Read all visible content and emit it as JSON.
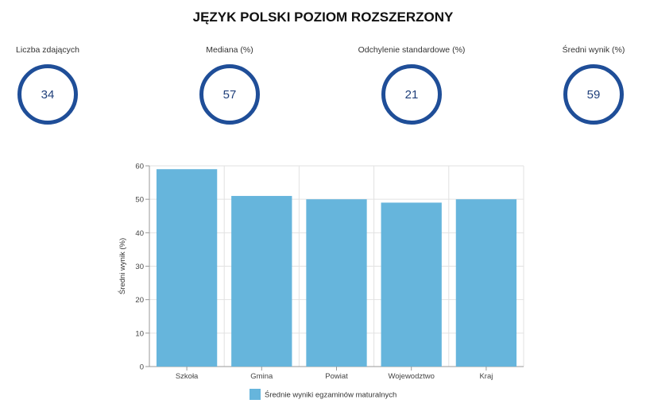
{
  "title": "JĘZYK POLSKI POZIOM ROZSZERZONY",
  "stats": [
    {
      "label": "Liczba zdających",
      "value": "34"
    },
    {
      "label": "Mediana (%)",
      "value": "57"
    },
    {
      "label": "Odchylenie standardowe (%)",
      "value": "21"
    },
    {
      "label": "Średni wynik (%)",
      "value": "59"
    }
  ],
  "colors": {
    "circle": "#1f4e98",
    "bar": "#66b5dc",
    "grid": "#e2e2e2"
  },
  "chart_data": {
    "type": "bar",
    "categories": [
      "Szkoła",
      "Gmina",
      "Powiat",
      "Wojewodztwo",
      "Kraj"
    ],
    "series": [
      {
        "name": "Średnie wyniki egzaminów maturalnych",
        "values": [
          59,
          51,
          50,
          49,
          50
        ]
      }
    ],
    "ylabel": "Średni wynik (%)",
    "xlabel": "",
    "ylim": [
      0,
      60
    ],
    "yticks": [
      0,
      10,
      20,
      30,
      40,
      50,
      60
    ],
    "grid": true,
    "legend": "bottom-center"
  }
}
